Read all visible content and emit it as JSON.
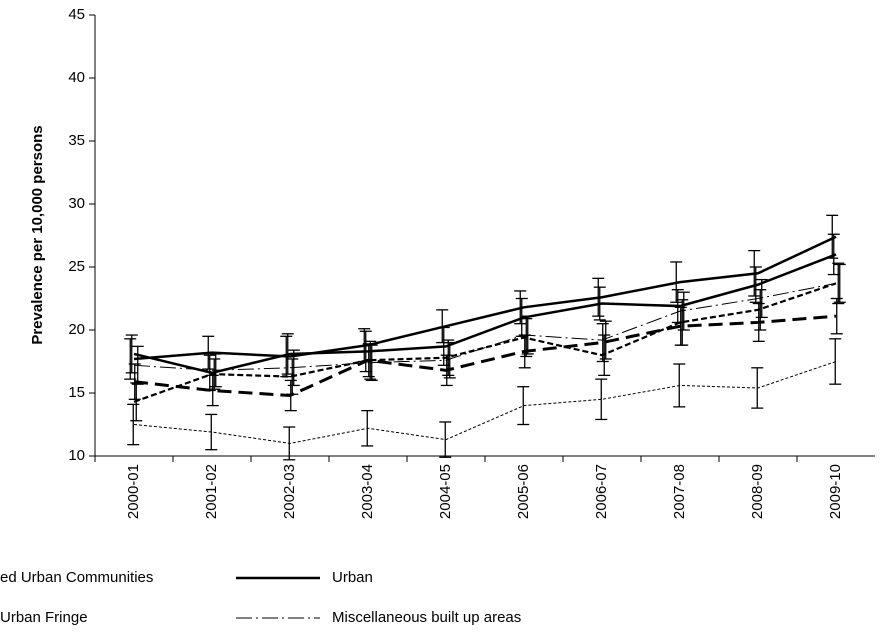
{
  "chart_data": {
    "type": "line",
    "y_label": "Prevalence per 10,000 persons",
    "categories": [
      "2000-01",
      "2001-02",
      "2002-03",
      "2003-04",
      "2004-05",
      "2005-06",
      "2006-07",
      "2007-08",
      "2008-09",
      "2009-10"
    ],
    "series": [
      {
        "name": "ed Urban Communities",
        "color": "#000000",
        "width": 2.5,
        "dash": "none",
        "values": [
          17.7,
          18.2,
          17.9,
          18.8,
          20.3,
          21.8,
          22.6,
          23.8,
          24.5,
          27.4
        ],
        "errors": [
          1.6,
          1.3,
          1.6,
          1.3,
          1.3,
          1.3,
          1.5,
          1.6,
          1.8,
          1.7
        ]
      },
      {
        "name": "Urban",
        "color": "#000000",
        "width": 2.5,
        "dash": "none",
        "values": [
          18.1,
          16.6,
          18.1,
          18.3,
          18.7,
          21.0,
          22.1,
          21.9,
          23.6,
          26.0
        ],
        "errors": [
          1.5,
          1.4,
          1.6,
          1.6,
          1.5,
          1.5,
          1.3,
          1.3,
          1.4,
          1.6
        ]
      },
      {
        "color": "#000000",
        "width": 1,
        "dash": "3,2",
        "values": [
          12.5,
          11.9,
          11.0,
          12.2,
          11.3,
          14.0,
          14.5,
          15.6,
          15.4,
          17.5
        ],
        "errors": [
          1.6,
          1.4,
          1.3,
          1.4,
          1.4,
          1.5,
          1.6,
          1.7,
          1.6,
          1.8
        ]
      },
      {
        "name": "Urban Fringe",
        "color": "#000000",
        "width": 3,
        "dash": "14,7",
        "values": [
          15.9,
          15.2,
          14.8,
          17.6,
          16.8,
          18.3,
          19.0,
          20.3,
          20.6,
          21.1
        ],
        "errors": [
          1.4,
          1.2,
          1.2,
          1.3,
          1.2,
          1.3,
          1.5,
          1.5,
          1.5,
          1.4
        ]
      },
      {
        "color": "#000000",
        "width": 2.2,
        "dash": "6,3",
        "values": [
          14.3,
          16.5,
          16.3,
          17.6,
          17.8,
          19.4,
          18.0,
          20.6,
          21.6,
          23.7
        ],
        "errors": [
          1.5,
          1.2,
          1.4,
          1.5,
          1.4,
          1.5,
          1.6,
          1.8,
          1.6,
          1.6
        ]
      },
      {
        "name": "Miscellaneous built up areas",
        "color": "#000000",
        "width": 1,
        "dash": "16,4,2,4",
        "values": [
          17.2,
          16.8,
          17.0,
          17.4,
          17.6,
          19.6,
          19.2,
          21.5,
          22.5,
          23.7
        ],
        "errors": [
          1.5,
          1.3,
          1.4,
          1.4,
          1.4,
          1.5,
          1.5,
          1.5,
          1.5,
          1.5
        ]
      }
    ],
    "ylim": [
      10,
      45
    ],
    "yticks": [
      10,
      15,
      20,
      25,
      30,
      35,
      40,
      45
    ],
    "grid": false
  }
}
